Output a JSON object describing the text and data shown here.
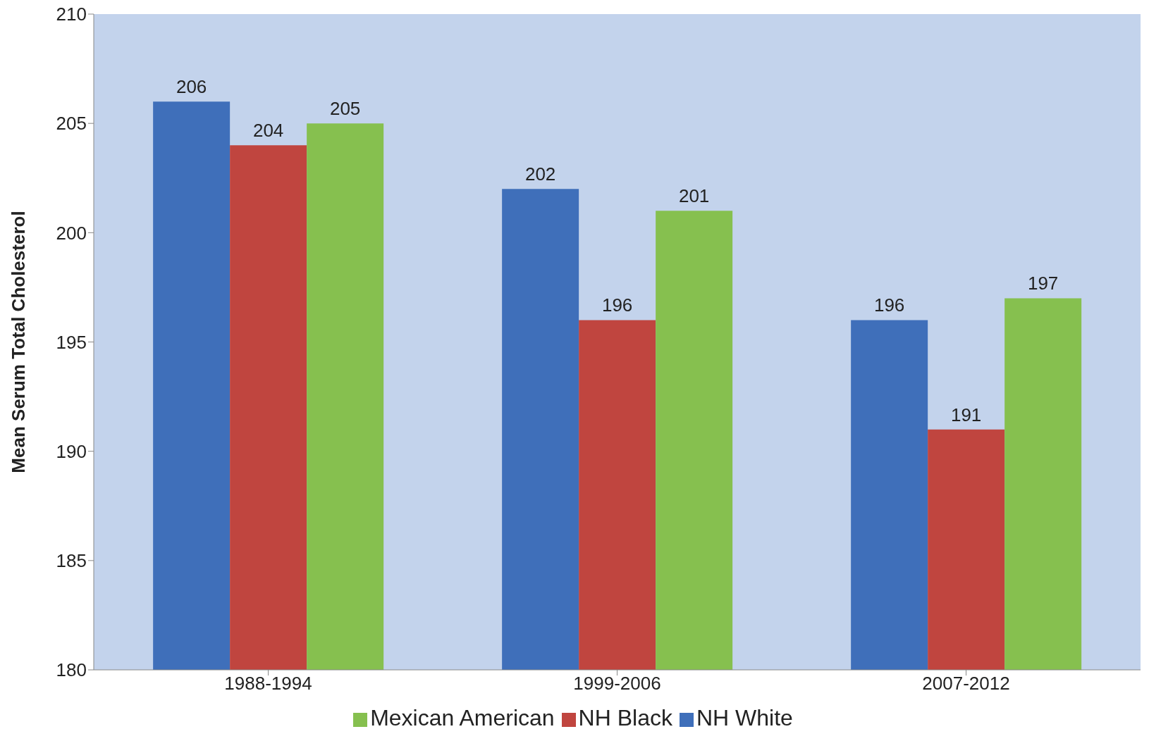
{
  "chart_data": {
    "type": "bar",
    "ylabel": "Mean Serum Total Cholesterol",
    "categories": [
      "1988-1994",
      "1999-2006",
      "2007-2012"
    ],
    "series": [
      {
        "name": "NH White",
        "color": "#3f6fba",
        "values": [
          206,
          202,
          196
        ]
      },
      {
        "name": "NH Black",
        "color": "#c0453f",
        "values": [
          204,
          196,
          191
        ]
      },
      {
        "name": "Mexican American",
        "color": "#86c04f",
        "values": [
          205,
          201,
          197
        ]
      }
    ],
    "ylim": [
      180,
      210
    ],
    "yticks": [
      180,
      185,
      190,
      195,
      200,
      205,
      210
    ],
    "grid": false,
    "legend": "bottom",
    "data_labels": true
  }
}
